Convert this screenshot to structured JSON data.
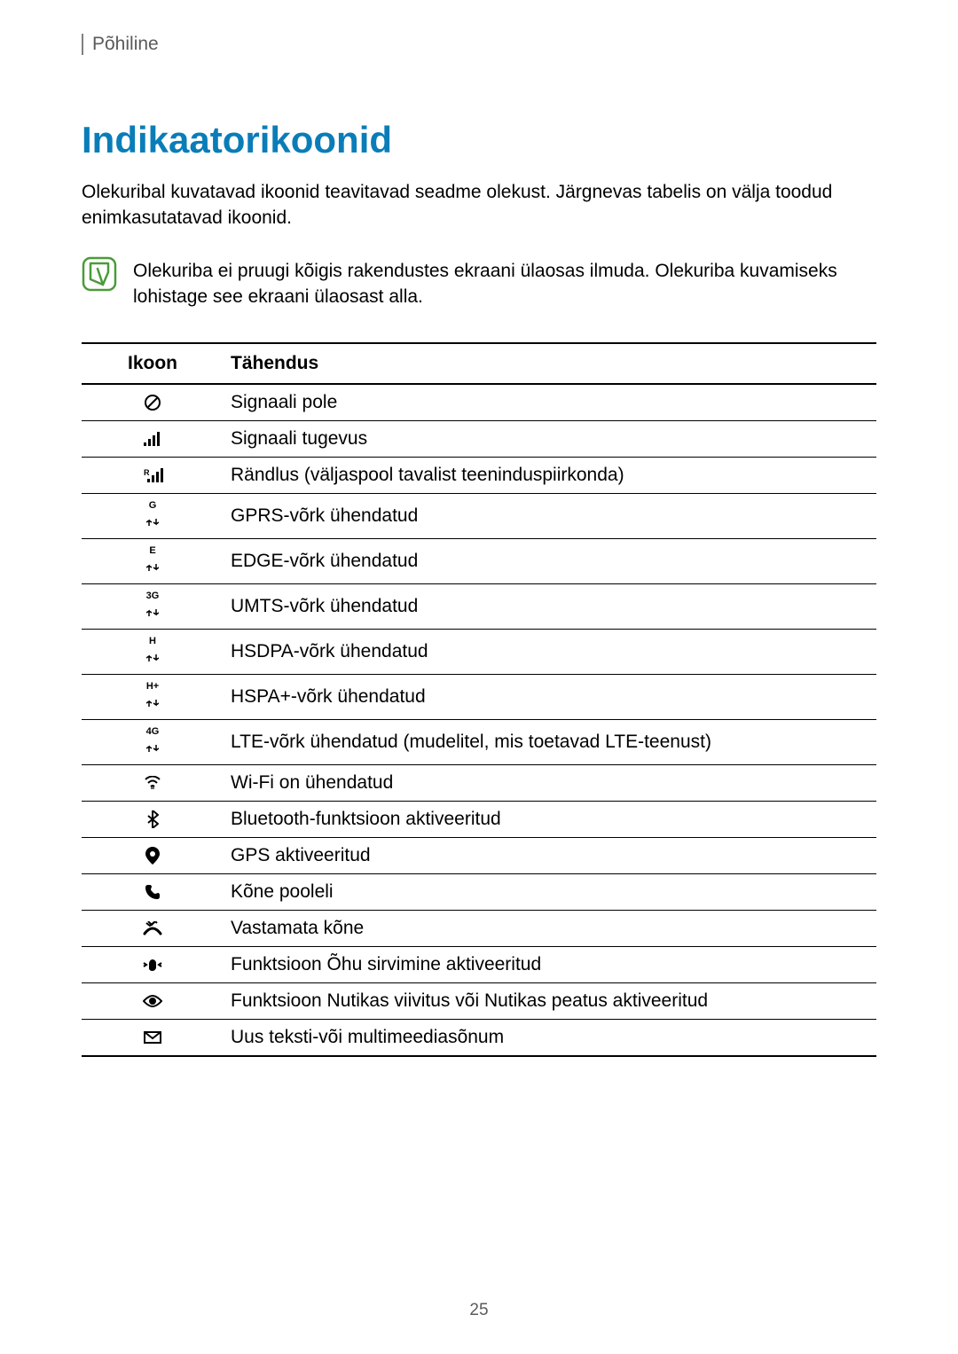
{
  "header": "Põhiline",
  "title": "Indikaatorikoonid",
  "intro": "Olekuribal kuvatavad ikoonid teavitavad seadme olekust. Järgnevas tabelis on välja toodud enimkasutatavad ikoonid.",
  "note": "Olekuriba ei pruugi kõigis rakendustes ekraani ülaosas ilmuda. Olekuriba kuvamiseks lohistage see ekraani ülaosast alla.",
  "table": {
    "col_icon": "Ikoon",
    "col_meaning": "Tähendus",
    "rows": [
      {
        "icon": "no-signal",
        "label": "",
        "text": "Signaali pole"
      },
      {
        "icon": "signal",
        "label": "",
        "text": "Signaali tugevus"
      },
      {
        "icon": "roaming",
        "label": "R",
        "text": "Rändlus (väljaspool tavalist teeninduspiirkonda)"
      },
      {
        "icon": "net",
        "label": "G",
        "text": "GPRS-võrk ühendatud"
      },
      {
        "icon": "net",
        "label": "E",
        "text": "EDGE-võrk ühendatud"
      },
      {
        "icon": "net",
        "label": "3G",
        "text": "UMTS-võrk ühendatud"
      },
      {
        "icon": "net",
        "label": "H",
        "text": "HSDPA-võrk ühendatud"
      },
      {
        "icon": "net",
        "label": "H+",
        "text": "HSPA+-võrk ühendatud"
      },
      {
        "icon": "net",
        "label": "4G",
        "text": "LTE-võrk ühendatud (mudelitel, mis toetavad LTE-teenust)"
      },
      {
        "icon": "wifi",
        "label": "",
        "text": "Wi-Fi on ühendatud"
      },
      {
        "icon": "bluetooth",
        "label": "",
        "text": "Bluetooth-funktsioon aktiveeritud"
      },
      {
        "icon": "gps",
        "label": "",
        "text": "GPS aktiveeritud"
      },
      {
        "icon": "call",
        "label": "",
        "text": "Kõne pooleli"
      },
      {
        "icon": "missed-call",
        "label": "",
        "text": "Vastamata kõne"
      },
      {
        "icon": "air-browse",
        "label": "",
        "text": "Funktsioon Õhu sirvimine aktiveeritud"
      },
      {
        "icon": "smart-stay",
        "label": "",
        "text": "Funktsioon Nutikas viivitus või Nutikas peatus aktiveeritud"
      },
      {
        "icon": "message",
        "label": "",
        "text": "Uus teksti-või multimeediasõnum"
      }
    ]
  },
  "page_number": "25",
  "colors": {
    "title": "#0a7db8",
    "text": "#000000",
    "header": "#5a5a5a",
    "border": "#000000",
    "note_icon_border": "#4a9b3a",
    "note_icon_fill": "#ffffff"
  }
}
